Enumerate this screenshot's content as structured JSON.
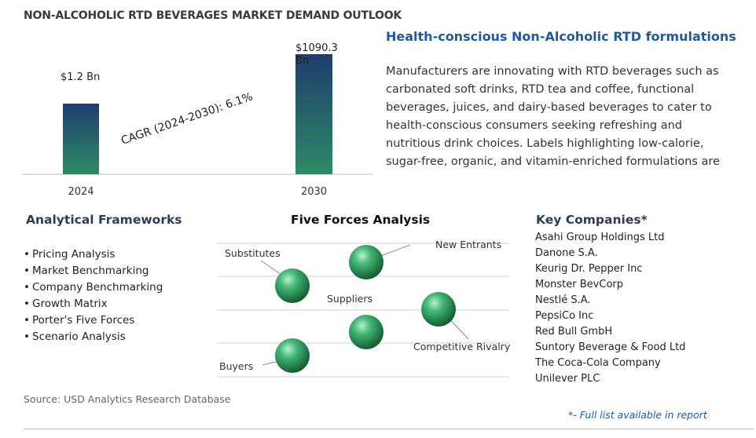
{
  "title": "NON-ALCOHOLIC RTD BEVERAGES MARKET DEMAND OUTLOOK",
  "chart_data": {
    "type": "bar",
    "categories": [
      "2024",
      "2030"
    ],
    "values": [
      1.2,
      1090.3
    ],
    "data_labels": [
      "$1.2 Bn",
      "$1090.3 Bn"
    ],
    "annotation": "CAGR (2024-2030):  6.1%",
    "colors": {
      "bar_top": "#1f3d6e",
      "bar_bottom": "#2e8a64",
      "axis": "#bfbfbf"
    }
  },
  "highlight": {
    "heading": "Health-conscious Non-Alcoholic RTD formulations",
    "body": "Manufacturers are innovating with RTD beverages such as carbonated soft drinks, RTD tea and coffee, functional beverages, juices, and dairy-based beverages to cater to health-conscious consumers seeking refreshing and nutritious drink choices. Labels highlighting low-calorie, sugar-free, organic, and vitamin-enriched formulations are key aspects of health-"
  },
  "frameworks": {
    "heading": "Analytical Frameworks",
    "items": [
      "Pricing Analysis",
      "Market Benchmarking",
      "Company Benchmarking",
      "Growth Matrix",
      "Porter's Five Forces",
      "Scenario Analysis"
    ]
  },
  "five_forces": {
    "heading": "Five Forces Analysis",
    "labels": {
      "substitutes": "Substitutes",
      "new_entrants": "New Entrants",
      "suppliers": "Suppliers",
      "competitive_rivalry": "Competitive Rivalry",
      "buyers": "Buyers"
    },
    "sphere_color": "#2e9a5e"
  },
  "companies": {
    "heading": "Key Companies*",
    "items": [
      "Asahi Group Holdings Ltd",
      "Danone S.A.",
      "Keurig Dr. Pepper Inc",
      "Monster BevCorp",
      "Nestlé S.A.",
      "PepsiCo Inc",
      "Red Bull GmbH",
      "Suntory Beverage & Food Ltd",
      "The Coca-Cola Company",
      "Unilever PLC"
    ]
  },
  "source": "Source: USD Analytics Research Database",
  "footnote": "*- Full list available in report"
}
